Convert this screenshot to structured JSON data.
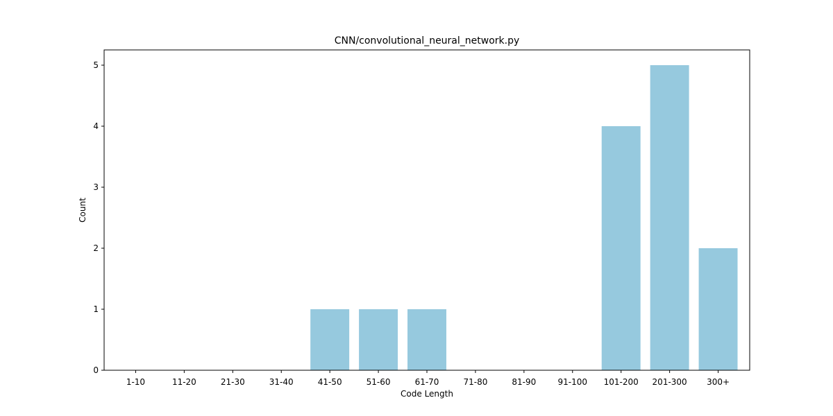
{
  "chart_data": {
    "type": "bar",
    "title": "CNN/convolutional_neural_network.py",
    "xlabel": "Code Length",
    "ylabel": "Count",
    "categories": [
      "1-10",
      "11-20",
      "21-30",
      "31-40",
      "41-50",
      "51-60",
      "61-70",
      "71-80",
      "81-90",
      "91-100",
      "101-200",
      "201-300",
      "300+"
    ],
    "values": [
      0,
      0,
      0,
      0,
      1,
      1,
      1,
      0,
      0,
      0,
      4,
      5,
      2
    ],
    "ylim": [
      0,
      5.25
    ],
    "yticks": [
      0,
      1,
      2,
      3,
      4,
      5
    ],
    "grid": false,
    "bar_color": "#96c9de"
  }
}
